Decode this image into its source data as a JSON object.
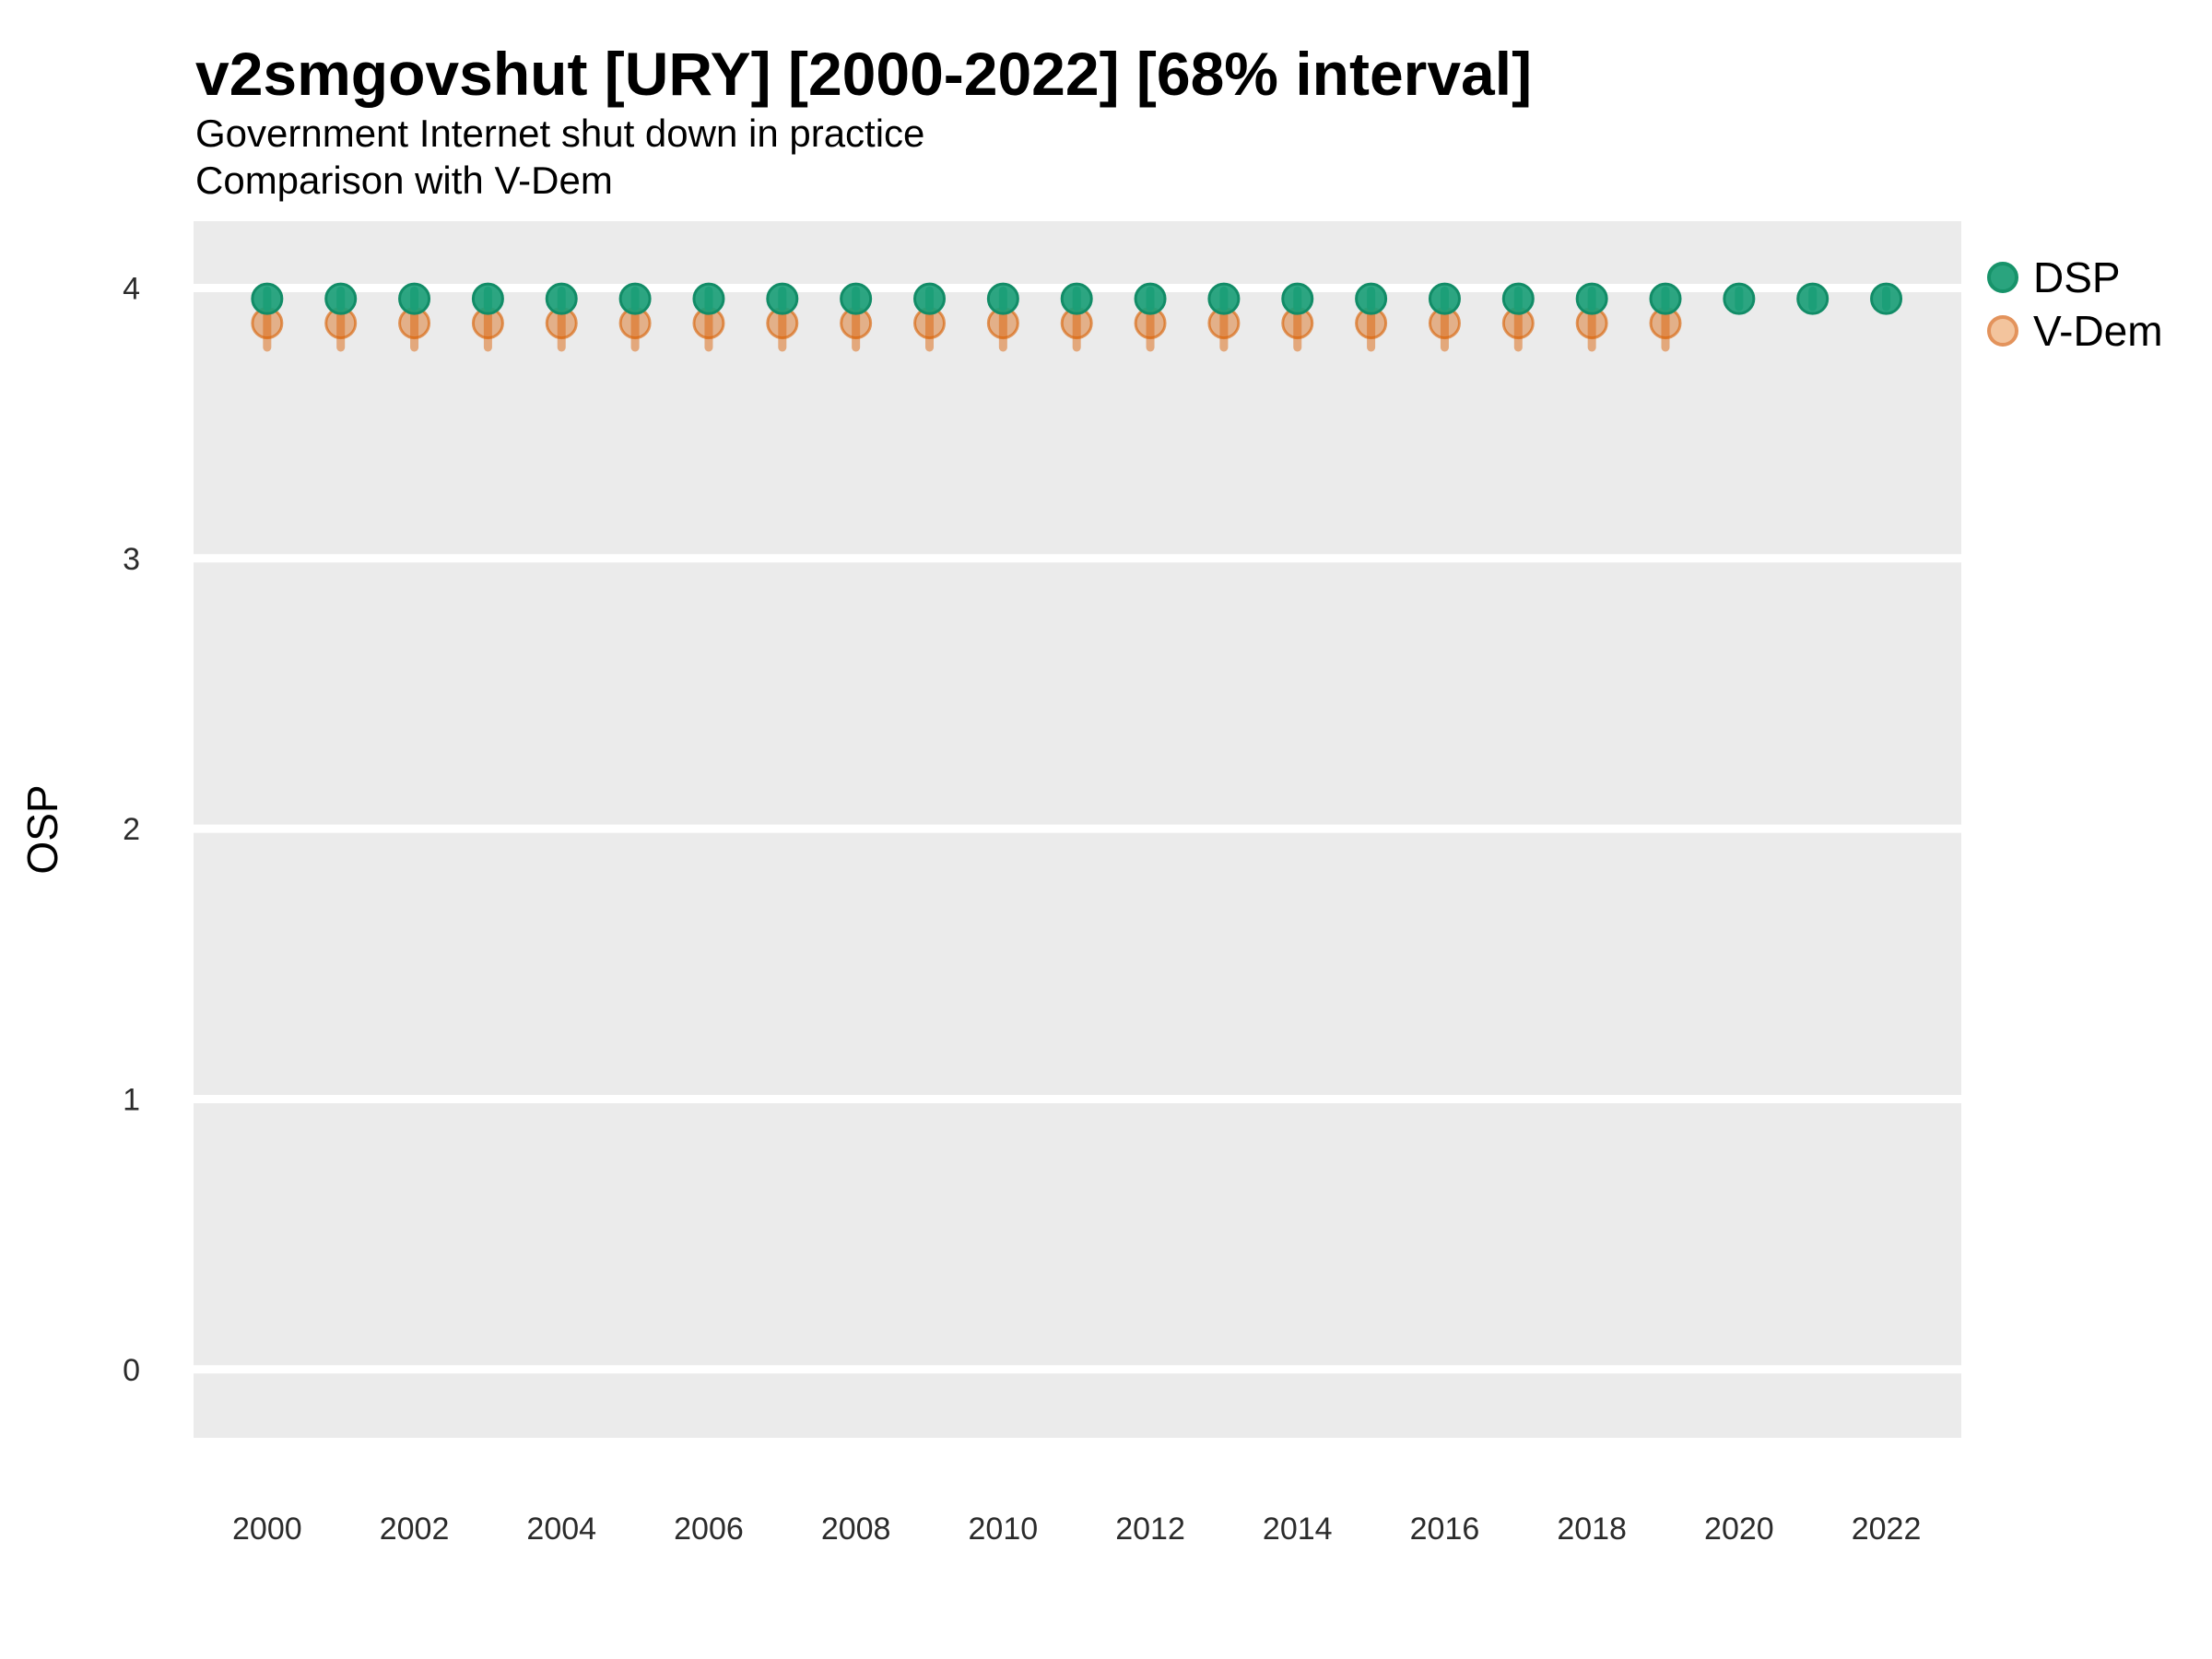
{
  "header": {
    "title": "v2smgovshut [URY] [2000-2022] [68% interval]",
    "subtitle1": "Government Internet shut down in practice",
    "subtitle2": "Comparison with V-Dem"
  },
  "axes": {
    "ylabel": "OSP",
    "xlabel": ""
  },
  "legend": {
    "items": [
      {
        "label": "DSP",
        "fill": "#2aa47e",
        "stroke": "#17936a"
      },
      {
        "label": "V-Dem",
        "fill": "#f3c49d",
        "stroke": "#e3935c"
      }
    ]
  },
  "style": {
    "panel_bg": "#ebebeb",
    "gridline_color": "#ffffff",
    "gridline_width": 9,
    "tick_text_color": "#2b2b2b",
    "tick_font_size": 34
  },
  "chart_data": {
    "type": "scatter",
    "subtype": "pointrange",
    "title": "v2smgovshut [URY] [2000-2022] [68% interval]",
    "subtitle": [
      "Government Internet shut down in practice",
      "Comparison with V-Dem"
    ],
    "xlabel": "",
    "ylabel": "OSP",
    "xlim": [
      1999,
      2023.02
    ],
    "ylim": [
      -0.253,
      4.247
    ],
    "x_ticks": [
      2000,
      2002,
      2004,
      2006,
      2008,
      2010,
      2012,
      2014,
      2016,
      2018,
      2020,
      2022
    ],
    "y_ticks": [
      0,
      1,
      2,
      3,
      4
    ],
    "grid": "major-horizontal",
    "legend_position": "right",
    "interval_level": "68%",
    "series": [
      {
        "name": "DSP",
        "color": "#1B9E77",
        "circle_fill": "rgba(27,158,119,0.92)",
        "circle_stroke": "rgba(18,140,103,1)",
        "stem_color": "rgba(27,158,119,0.95)",
        "point_radius": 16,
        "years": [
          2000,
          2001,
          2002,
          2003,
          2004,
          2005,
          2006,
          2007,
          2008,
          2009,
          2010,
          2011,
          2012,
          2013,
          2014,
          2015,
          2016,
          2017,
          2018,
          2019,
          2020,
          2021,
          2022
        ],
        "y": [
          3.96,
          3.96,
          3.96,
          3.96,
          3.96,
          3.96,
          3.96,
          3.96,
          3.96,
          3.96,
          3.96,
          3.96,
          3.96,
          3.96,
          3.96,
          3.96,
          3.96,
          3.96,
          3.96,
          3.96,
          3.96,
          3.96,
          3.96
        ],
        "lo": [
          3.93,
          3.93,
          3.93,
          3.93,
          3.93,
          3.93,
          3.93,
          3.93,
          3.93,
          3.93,
          3.93,
          3.93,
          3.93,
          3.93,
          3.93,
          3.93,
          3.93,
          3.93,
          3.93,
          3.93,
          3.93,
          3.93,
          3.93
        ],
        "hi": [
          3.99,
          3.99,
          3.99,
          3.99,
          3.99,
          3.99,
          3.99,
          3.99,
          3.99,
          3.99,
          3.99,
          3.99,
          3.99,
          3.99,
          3.99,
          3.99,
          3.99,
          3.99,
          3.99,
          3.99,
          3.99,
          3.99,
          3.99
        ]
      },
      {
        "name": "V-Dem",
        "color": "#D95F02",
        "circle_fill": "rgba(217,95,2,0.42)",
        "circle_stroke": "rgba(217,95,2,0.62)",
        "stem_color": "rgba(217,95,2,0.48)",
        "point_radius": 16,
        "years": [
          2000,
          2001,
          2002,
          2003,
          2004,
          2005,
          2006,
          2007,
          2008,
          2009,
          2010,
          2011,
          2012,
          2013,
          2014,
          2015,
          2016,
          2017,
          2018,
          2019
        ],
        "y": [
          3.87,
          3.87,
          3.87,
          3.87,
          3.87,
          3.87,
          3.87,
          3.87,
          3.87,
          3.87,
          3.87,
          3.87,
          3.87,
          3.87,
          3.87,
          3.87,
          3.87,
          3.87,
          3.87,
          3.87
        ],
        "lo": [
          3.78,
          3.78,
          3.78,
          3.78,
          3.78,
          3.78,
          3.78,
          3.78,
          3.78,
          3.78,
          3.78,
          3.78,
          3.78,
          3.78,
          3.78,
          3.78,
          3.78,
          3.78,
          3.78,
          3.78
        ],
        "hi": [
          3.95,
          3.95,
          3.95,
          3.95,
          3.95,
          3.95,
          3.95,
          3.95,
          3.95,
          3.95,
          3.95,
          3.95,
          3.95,
          3.95,
          3.95,
          3.95,
          3.95,
          3.95,
          3.95,
          3.95
        ]
      }
    ]
  }
}
